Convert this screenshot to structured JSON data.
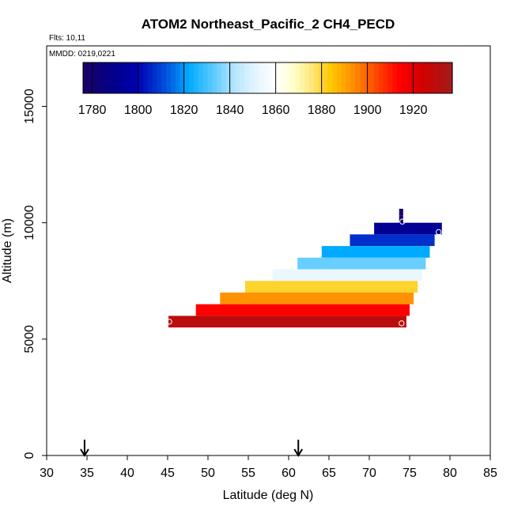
{
  "chart_data": {
    "type": "heatmap",
    "title": "ATOM2 Northeast_Pacific_2 CH4_PECD",
    "flights_text": "Flts: 10,11",
    "mmdd_text": "MMDD: 0219,0221",
    "xlabel": "Latitude (deg N)",
    "ylabel": "Altitude (m)",
    "xlim": [
      30,
      85
    ],
    "ylim": [
      0,
      17600
    ],
    "x_ticks": [
      "30",
      "35",
      "40",
      "45",
      "50",
      "55",
      "60",
      "65",
      "70",
      "75",
      "80",
      "85"
    ],
    "y_ticks": [
      "0",
      "5000",
      "10000",
      "15000"
    ],
    "colorbar": {
      "range": [
        1776,
        1937
      ],
      "tick_values": [
        1780,
        1800,
        1820,
        1840,
        1860,
        1880,
        1900,
        1920
      ],
      "tick_labels": [
        "1780",
        "1800",
        "1820",
        "1840",
        "1860",
        "1880",
        "1900",
        "1920"
      ],
      "stops": [
        {
          "v": 1776,
          "c": "#1a0066"
        },
        {
          "v": 1790,
          "c": "#00008c"
        },
        {
          "v": 1800,
          "c": "#0000b4"
        },
        {
          "v": 1812,
          "c": "#0050dc"
        },
        {
          "v": 1822,
          "c": "#00aaff"
        },
        {
          "v": 1832,
          "c": "#55c8ff"
        },
        {
          "v": 1842,
          "c": "#b4e6ff"
        },
        {
          "v": 1852,
          "c": "#e8f6ff"
        },
        {
          "v": 1860,
          "c": "#ffffff"
        },
        {
          "v": 1868,
          "c": "#ffffc8"
        },
        {
          "v": 1876,
          "c": "#ffe678"
        },
        {
          "v": 1884,
          "c": "#ffc800"
        },
        {
          "v": 1894,
          "c": "#ff8c00"
        },
        {
          "v": 1904,
          "c": "#ff4600"
        },
        {
          "v": 1914,
          "c": "#ff0000"
        },
        {
          "v": 1924,
          "c": "#d20000"
        },
        {
          "v": 1937,
          "c": "#a01c1c"
        }
      ]
    },
    "bins": [
      {
        "y0": 10300,
        "y1": 10600,
        "x0": 73.7,
        "x1": 74.2,
        "value": 1776
      },
      {
        "y0": 9800,
        "y1": 10300,
        "x0": 73.7,
        "x1": 74.2,
        "value": 1776
      },
      {
        "y0": 9500,
        "y1": 10000,
        "x0": 70.6,
        "x1": 79.0,
        "value": 1792
      },
      {
        "y0": 9000,
        "y1": 9500,
        "x0": 67.6,
        "x1": 78.1,
        "value": 1807
      },
      {
        "y0": 8500,
        "y1": 9000,
        "x0": 64.1,
        "x1": 77.5,
        "value": 1822
      },
      {
        "y0": 8000,
        "y1": 8500,
        "x0": 61.1,
        "x1": 77.0,
        "value": 1834
      },
      {
        "y0": 7500,
        "y1": 8000,
        "x0": 58.0,
        "x1": 76.5,
        "value": 1853
      },
      {
        "y0": 7000,
        "y1": 7500,
        "x0": 54.6,
        "x1": 76.0,
        "value": 1881
      },
      {
        "y0": 6500,
        "y1": 7000,
        "x0": 51.5,
        "x1": 75.5,
        "value": 1893
      },
      {
        "y0": 6000,
        "y1": 6500,
        "x0": 48.5,
        "x1": 75.0,
        "value": 1914
      },
      {
        "y0": 5500,
        "y1": 6000,
        "x0": 45.1,
        "x1": 74.6,
        "value": 1930
      }
    ],
    "points": [
      {
        "x": 74.1,
        "y": 10050
      },
      {
        "x": 78.6,
        "y": 9600
      },
      {
        "x": 45.2,
        "y": 5750
      },
      {
        "x": 74.0,
        "y": 5680
      }
    ],
    "arrows": [
      {
        "x": 34.7
      },
      {
        "x": 61.2
      }
    ]
  }
}
